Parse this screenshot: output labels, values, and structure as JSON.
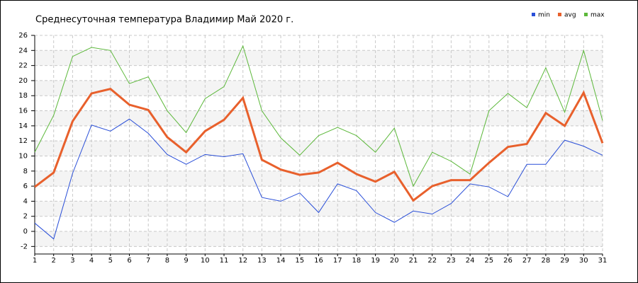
{
  "chart_data": {
    "type": "line",
    "title": "Среднесуточная температура Владимир  Май 2020 г.",
    "x": [
      1,
      2,
      3,
      4,
      5,
      6,
      7,
      8,
      9,
      10,
      11,
      12,
      13,
      14,
      15,
      16,
      17,
      18,
      19,
      20,
      21,
      22,
      23,
      24,
      25,
      26,
      27,
      28,
      29,
      30,
      31
    ],
    "xlim": [
      1,
      31
    ],
    "xticks": [
      1,
      2,
      3,
      4,
      5,
      6,
      7,
      8,
      9,
      10,
      11,
      12,
      13,
      14,
      15,
      16,
      17,
      18,
      19,
      20,
      21,
      22,
      23,
      24,
      25,
      26,
      27,
      28,
      29,
      30,
      31
    ],
    "ylim": [
      -3,
      26
    ],
    "yticks": [
      -2,
      0,
      2,
      4,
      6,
      8,
      10,
      12,
      14,
      16,
      18,
      20,
      22,
      24,
      26
    ],
    "grid": true,
    "legend": "top-right",
    "series": [
      {
        "name": "min",
        "color": "#2a4fd8",
        "values": [
          1.1,
          -1.0,
          7.7,
          14.1,
          13.3,
          14.9,
          13.0,
          10.2,
          8.9,
          10.2,
          9.9,
          10.3,
          4.5,
          4.0,
          5.1,
          2.5,
          6.3,
          5.4,
          2.5,
          1.2,
          2.7,
          2.3,
          3.7,
          6.3,
          5.9,
          4.6,
          8.9,
          8.9,
          12.1,
          11.3,
          10.1
        ]
      },
      {
        "name": "avg",
        "color": "#e8602c",
        "values": [
          5.9,
          7.8,
          14.6,
          18.3,
          18.9,
          16.8,
          16.1,
          12.5,
          10.5,
          13.3,
          14.8,
          17.7,
          9.5,
          8.2,
          7.5,
          7.8,
          9.1,
          7.6,
          6.6,
          7.9,
          4.1,
          6.0,
          6.8,
          6.8,
          9.1,
          11.2,
          11.6,
          15.7,
          14.0,
          18.4,
          11.7
        ]
      },
      {
        "name": "max",
        "color": "#5cb83a",
        "values": [
          10.5,
          15.4,
          23.2,
          24.4,
          24.0,
          19.6,
          20.5,
          16.0,
          13.1,
          17.6,
          19.2,
          24.6,
          16.0,
          12.4,
          10.1,
          12.7,
          13.8,
          12.7,
          10.5,
          13.7,
          6.0,
          10.5,
          9.3,
          7.6,
          16.0,
          18.3,
          16.4,
          21.7,
          15.8,
          24.0,
          14.7
        ]
      }
    ]
  }
}
